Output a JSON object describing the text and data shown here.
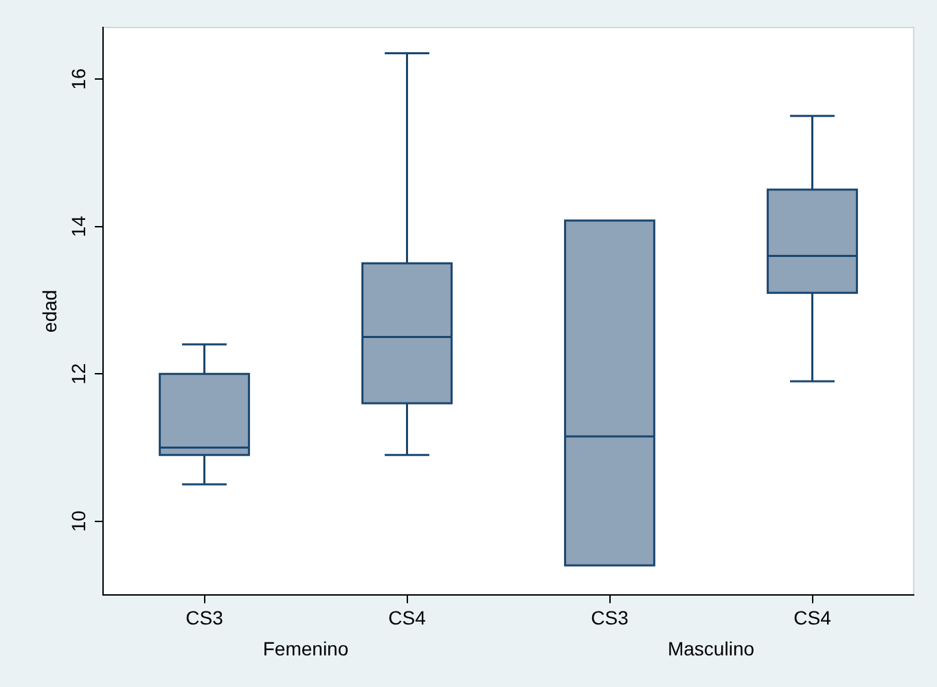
{
  "chart_data": {
    "type": "box",
    "ylabel": "edad",
    "categories": [
      "CS3",
      "CS4",
      "CS3",
      "CS4"
    ],
    "annotations": [
      "Femenino",
      "Masculino"
    ],
    "boxes": [
      {
        "low": 10.5,
        "q1": 10.9,
        "median": 11.0,
        "q3": 12.0,
        "high": 12.4
      },
      {
        "low": 10.9,
        "q1": 11.6,
        "median": 12.5,
        "q3": 13.5,
        "high": 16.35
      },
      {
        "low": 9.4,
        "q1": 9.4,
        "median": 11.15,
        "q3": 14.08,
        "high": 14.08
      },
      {
        "low": 11.9,
        "q1": 13.1,
        "median": 13.6,
        "q3": 14.5,
        "high": 15.5
      }
    ],
    "colors": [
      "#8fa3b9",
      "#8fa3b9",
      "#8fa3b9",
      "#8fa3b9"
    ],
    "ylim": [
      9,
      16.7
    ],
    "yticks": [
      10,
      12,
      14,
      16
    ],
    "grid": false,
    "legend": false
  }
}
